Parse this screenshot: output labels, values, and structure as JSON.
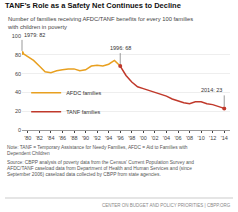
{
  "chart_data": {
    "type": "line",
    "title": "TANF’s Role as a Safety Net Continues to Decline",
    "subtitle": "Number of families receiving AFDC/TANF benefits for every 100 families\nwith children in poverty",
    "series": [
      {
        "name": "AFDC families",
        "color": "#e8a020",
        "x": [
          1979,
          1980,
          1981,
          1982,
          1983,
          1984,
          1985,
          1986,
          1987,
          1988,
          1989,
          1990,
          1991,
          1992,
          1993,
          1994,
          1995,
          1996
        ],
        "values": [
          82,
          78,
          74,
          68,
          62,
          61,
          63,
          64,
          65,
          65,
          63,
          64,
          68,
          69,
          68,
          70,
          74,
          68
        ]
      },
      {
        "name": "TANF families",
        "color": "#c0392b",
        "x": [
          1996,
          1997,
          1998,
          1999,
          2000,
          2001,
          2002,
          2003,
          2004,
          2005,
          2006,
          2007,
          2008,
          2009,
          2010,
          2011,
          2012,
          2013,
          2014
        ],
        "values": [
          68,
          58,
          51,
          46,
          44,
          42,
          40,
          38,
          36,
          33,
          31,
          29,
          28,
          30,
          30,
          28,
          27,
          25,
          23
        ]
      }
    ],
    "annotations": [
      {
        "x": 1979,
        "y": 82,
        "text": "1979: 82",
        "color": "#e8a020"
      },
      {
        "x": 1996,
        "y": 68,
        "text": "1996: 68",
        "color": "#c0392b"
      },
      {
        "x": 2014,
        "y": 23,
        "text": "2014: 23",
        "color": "#c0392b"
      }
    ],
    "xlim": [
      1979,
      2015
    ],
    "xticks": [
      {
        "value": 1980,
        "label": "'80"
      },
      {
        "value": 1982,
        "label": "'82"
      },
      {
        "value": 1984,
        "label": "'84"
      },
      {
        "value": 1986,
        "label": "'86"
      },
      {
        "value": 1988,
        "label": "'88"
      },
      {
        "value": 1990,
        "label": "'90"
      },
      {
        "value": 1992,
        "label": "'92"
      },
      {
        "value": 1994,
        "label": "'94"
      },
      {
        "value": 1996,
        "label": "'96"
      },
      {
        "value": 1998,
        "label": "'98"
      },
      {
        "value": 2000,
        "label": "'00"
      },
      {
        "value": 2002,
        "label": "'02"
      },
      {
        "value": 2004,
        "label": "'04"
      },
      {
        "value": 2006,
        "label": "'06"
      },
      {
        "value": 2008,
        "label": "'08"
      },
      {
        "value": 2010,
        "label": "'10"
      },
      {
        "value": 2012,
        "label": "'12"
      },
      {
        "value": 2014,
        "label": "'14"
      }
    ],
    "ylim": [
      0,
      100
    ],
    "yticks": [
      0,
      20,
      40,
      60,
      80,
      100
    ],
    "grid": "y",
    "legend": "lower left",
    "note": "Note: TANF = Temporary Assistance for Needy Families, AFDC = Aid to Families with\nDependent Children",
    "source": "Source: CBPP analysis of poverty data from the Census’ Current Population Survey and\nAFDC/TANF caseload data from Department of Health and Human Services and (since\nSeptember 2006) caseload data collected by CBPP from state agencies.",
    "footer": "CENTER ON BUDGET AND POLICY PRIORITIES | CBPP.ORG"
  }
}
